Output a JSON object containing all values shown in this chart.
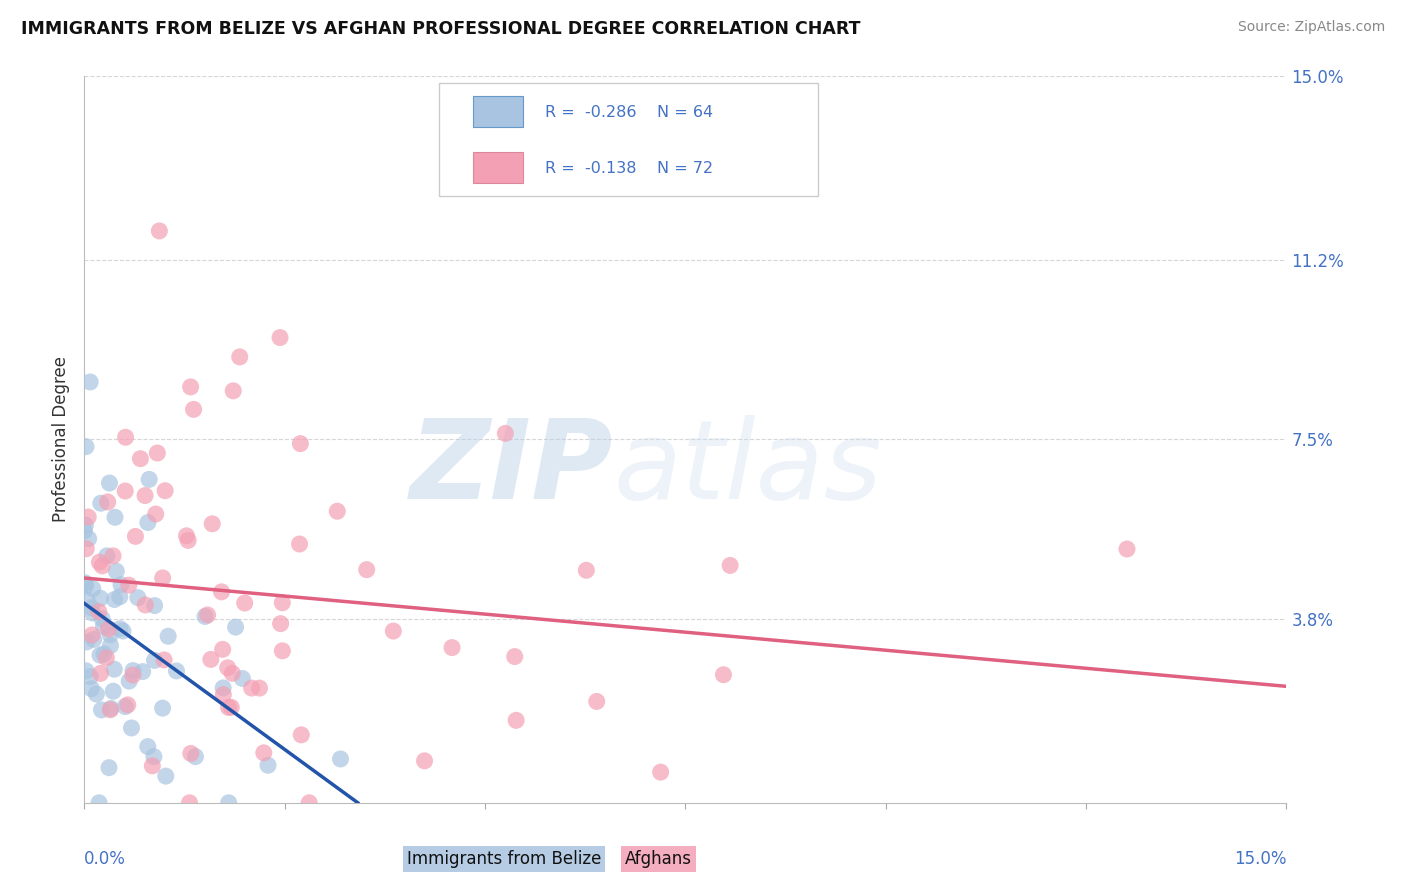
{
  "title": "IMMIGRANTS FROM BELIZE VS AFGHAN PROFESSIONAL DEGREE CORRELATION CHART",
  "source_text": "Source: ZipAtlas.com",
  "ylabel": "Professional Degree",
  "legend_label1": "Immigrants from Belize",
  "legend_label2": "Afghans",
  "xlim": [
    0.0,
    15.0
  ],
  "ylim": [
    0.0,
    15.0
  ],
  "ytick_vals": [
    0.0,
    3.8,
    7.5,
    11.2,
    15.0
  ],
  "ytick_labels": [
    "",
    "3.8%",
    "7.5%",
    "11.2%",
    "15.0%"
  ],
  "color_belize": "#a8c4e0",
  "color_afghan": "#f4a0b4",
  "color_belize_line": "#2255aa",
  "color_afghan_line": "#e06080",
  "grid_color": "#cccccc",
  "dot_size": 150,
  "seed": 12
}
